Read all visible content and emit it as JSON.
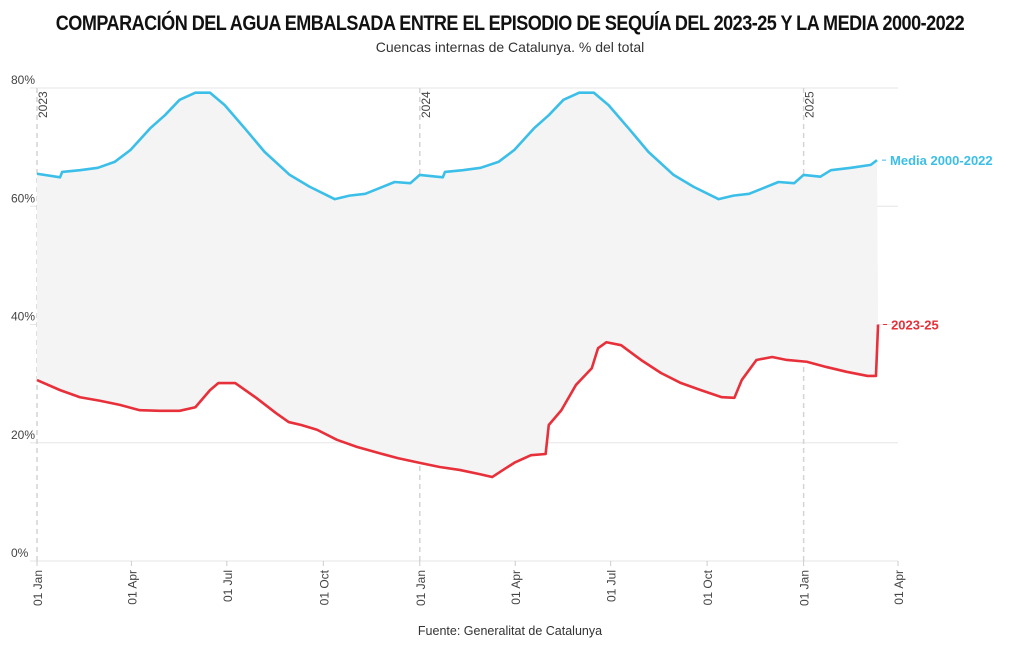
{
  "title": "COMPARACIÓN DEL AGUA EMBALSADA ENTRE EL EPISODIO DE SEQUÍA DEL 2023-25 Y LA MEDIA 2000-2022",
  "subtitle": "Cuencas internas de Catalunya. % del total",
  "source": "Fuente: Generalitat de Catalunya",
  "chart_data": {
    "type": "line",
    "xlabel": "",
    "ylabel": "",
    "xlim": [
      "2023-01-01",
      "2025-04-01"
    ],
    "ylim": [
      0,
      80
    ],
    "y_ticks": [
      0,
      20,
      40,
      60,
      80
    ],
    "y_tick_labels": [
      "0%",
      "20%",
      "40%",
      "60%",
      "80%"
    ],
    "x_ticks": [
      "2023-01-01",
      "2023-04-01",
      "2023-07-01",
      "2023-10-01",
      "2024-01-01",
      "2024-04-01",
      "2024-07-01",
      "2024-10-01",
      "2025-01-01",
      "2025-04-01"
    ],
    "x_tick_labels": [
      "01 Jan",
      "01 Apr",
      "01 Jul",
      "01 Oct",
      "01 Jan",
      "01 Apr",
      "01 Jul",
      "01 Oct",
      "01 Jan",
      "01 Apr"
    ],
    "year_markers": [
      {
        "date": "2023-01-01",
        "label": "2023"
      },
      {
        "date": "2024-01-01",
        "label": "2024"
      },
      {
        "date": "2025-01-01",
        "label": "2025"
      }
    ],
    "grid": true,
    "shaded_between_series": true,
    "series": [
      {
        "name": "Media 2000-2022",
        "color": "#3bbfe8",
        "points": [
          [
            "2023-01-01",
            65.5
          ],
          [
            "2023-01-23",
            64.9
          ],
          [
            "2023-01-25",
            65.8
          ],
          [
            "2023-02-11",
            66.1
          ],
          [
            "2023-02-28",
            66.5
          ],
          [
            "2023-03-16",
            67.5
          ],
          [
            "2023-03-31",
            69.5
          ],
          [
            "2023-04-19",
            73.2
          ],
          [
            "2023-05-03",
            75.4
          ],
          [
            "2023-05-17",
            78.0
          ],
          [
            "2023-06-01",
            79.2
          ],
          [
            "2023-06-15",
            79.2
          ],
          [
            "2023-06-29",
            77.1
          ],
          [
            "2023-07-18",
            73.2
          ],
          [
            "2023-08-06",
            69.2
          ],
          [
            "2023-08-30",
            65.3
          ],
          [
            "2023-09-18",
            63.3
          ],
          [
            "2023-10-12",
            61.2
          ],
          [
            "2023-10-26",
            61.8
          ],
          [
            "2023-11-10",
            62.1
          ],
          [
            "2023-11-24",
            63.1
          ],
          [
            "2023-12-08",
            64.1
          ],
          [
            "2023-12-23",
            63.9
          ],
          [
            "2024-01-01",
            65.3
          ],
          [
            "2024-01-23",
            64.9
          ],
          [
            "2024-01-25",
            65.8
          ],
          [
            "2024-02-11",
            66.1
          ],
          [
            "2024-02-28",
            66.5
          ],
          [
            "2024-03-16",
            67.5
          ],
          [
            "2024-03-31",
            69.5
          ],
          [
            "2024-04-19",
            73.2
          ],
          [
            "2024-05-03",
            75.4
          ],
          [
            "2024-05-17",
            78.0
          ],
          [
            "2024-06-01",
            79.2
          ],
          [
            "2024-06-15",
            79.2
          ],
          [
            "2024-06-29",
            77.1
          ],
          [
            "2024-07-18",
            73.2
          ],
          [
            "2024-08-06",
            69.2
          ],
          [
            "2024-08-30",
            65.3
          ],
          [
            "2024-09-18",
            63.3
          ],
          [
            "2024-10-12",
            61.2
          ],
          [
            "2024-10-26",
            61.8
          ],
          [
            "2024-11-10",
            62.1
          ],
          [
            "2024-11-24",
            63.1
          ],
          [
            "2024-12-08",
            64.1
          ],
          [
            "2024-12-23",
            63.9
          ],
          [
            "2025-01-01",
            65.3
          ],
          [
            "2025-01-17",
            65.0
          ],
          [
            "2025-01-27",
            66.1
          ],
          [
            "2025-02-15",
            66.5
          ],
          [
            "2025-03-06",
            67.0
          ],
          [
            "2025-03-12",
            67.8
          ]
        ]
      },
      {
        "name": "2023-25",
        "color": "#e8303a",
        "points": [
          [
            "2023-01-01",
            30.6
          ],
          [
            "2023-01-23",
            28.9
          ],
          [
            "2023-02-11",
            27.7
          ],
          [
            "2023-03-02",
            27.1
          ],
          [
            "2023-03-21",
            26.4
          ],
          [
            "2023-04-09",
            25.5
          ],
          [
            "2023-04-28",
            25.4
          ],
          [
            "2023-05-17",
            25.4
          ],
          [
            "2023-06-01",
            26.0
          ],
          [
            "2023-06-15",
            28.9
          ],
          [
            "2023-06-23",
            30.1
          ],
          [
            "2023-07-09",
            30.1
          ],
          [
            "2023-07-29",
            27.6
          ],
          [
            "2023-08-17",
            25.0
          ],
          [
            "2023-08-29",
            23.5
          ],
          [
            "2023-09-10",
            23.0
          ],
          [
            "2023-09-25",
            22.2
          ],
          [
            "2023-10-14",
            20.5
          ],
          [
            "2023-11-02",
            19.3
          ],
          [
            "2023-11-22",
            18.3
          ],
          [
            "2023-12-11",
            17.4
          ],
          [
            "2024-01-01",
            16.6
          ],
          [
            "2024-01-20",
            15.9
          ],
          [
            "2024-02-08",
            15.4
          ],
          [
            "2024-02-27",
            14.7
          ],
          [
            "2024-03-10",
            14.2
          ],
          [
            "2024-03-23",
            15.7
          ],
          [
            "2024-04-01",
            16.7
          ],
          [
            "2024-04-16",
            17.9
          ],
          [
            "2024-04-30",
            18.1
          ],
          [
            "2024-05-03",
            23.0
          ],
          [
            "2024-05-15",
            25.5
          ],
          [
            "2024-05-29",
            29.8
          ],
          [
            "2024-06-13",
            32.6
          ],
          [
            "2024-06-19",
            36.0
          ],
          [
            "2024-06-27",
            37.0
          ],
          [
            "2024-07-11",
            36.5
          ],
          [
            "2024-07-30",
            34.0
          ],
          [
            "2024-08-18",
            31.8
          ],
          [
            "2024-09-06",
            30.1
          ],
          [
            "2024-09-25",
            28.9
          ],
          [
            "2024-10-15",
            27.7
          ],
          [
            "2024-10-27",
            27.6
          ],
          [
            "2024-11-03",
            30.6
          ],
          [
            "2024-11-17",
            34.0
          ],
          [
            "2024-12-02",
            34.5
          ],
          [
            "2024-12-16",
            34.0
          ],
          [
            "2025-01-04",
            33.7
          ],
          [
            "2025-01-23",
            32.8
          ],
          [
            "2025-02-11",
            32.0
          ],
          [
            "2025-03-03",
            31.3
          ],
          [
            "2025-03-11",
            31.3
          ],
          [
            "2025-03-13",
            40.0
          ]
        ]
      }
    ]
  }
}
